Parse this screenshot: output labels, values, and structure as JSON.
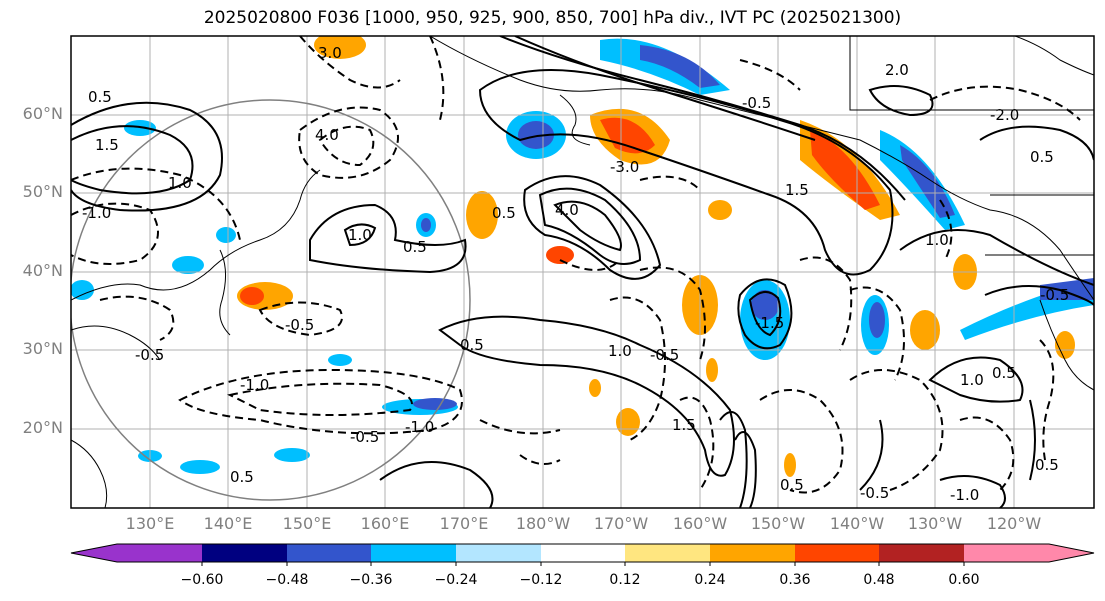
{
  "title": "2025020800 F036 [1000, 950, 925, 900, 850, 700] hPa div., IVT PC (2025021300)",
  "map": {
    "lat_labels": [
      "60°N",
      "50°N",
      "40°N",
      "30°N",
      "20°N"
    ],
    "lon_labels": [
      "130°E",
      "140°E",
      "150°E",
      "160°E",
      "170°E",
      "180°W",
      "170°W",
      "160°W",
      "150°W",
      "140°W",
      "130°W",
      "120°W"
    ],
    "contour_labels": [
      "0.5",
      "1.0",
      "1.5",
      "2.0",
      "-0.5",
      "-1.0",
      "-1.5",
      "-2.0",
      "-3.0",
      "3.0",
      "4.0",
      "-4.0"
    ]
  },
  "colorbar": {
    "ticks": [
      "−0.60",
      "−0.48",
      "−0.36",
      "−0.24",
      "−0.12",
      "0.12",
      "0.24",
      "0.36",
      "0.48",
      "0.60"
    ],
    "colors": [
      "#9933cc",
      "#000080",
      "#3355cc",
      "#00bfff",
      "#b3e6ff",
      "#ffffff",
      "#ffe680",
      "#ffa500",
      "#ff4500",
      "#b22222",
      "#ff88aa"
    ]
  }
}
